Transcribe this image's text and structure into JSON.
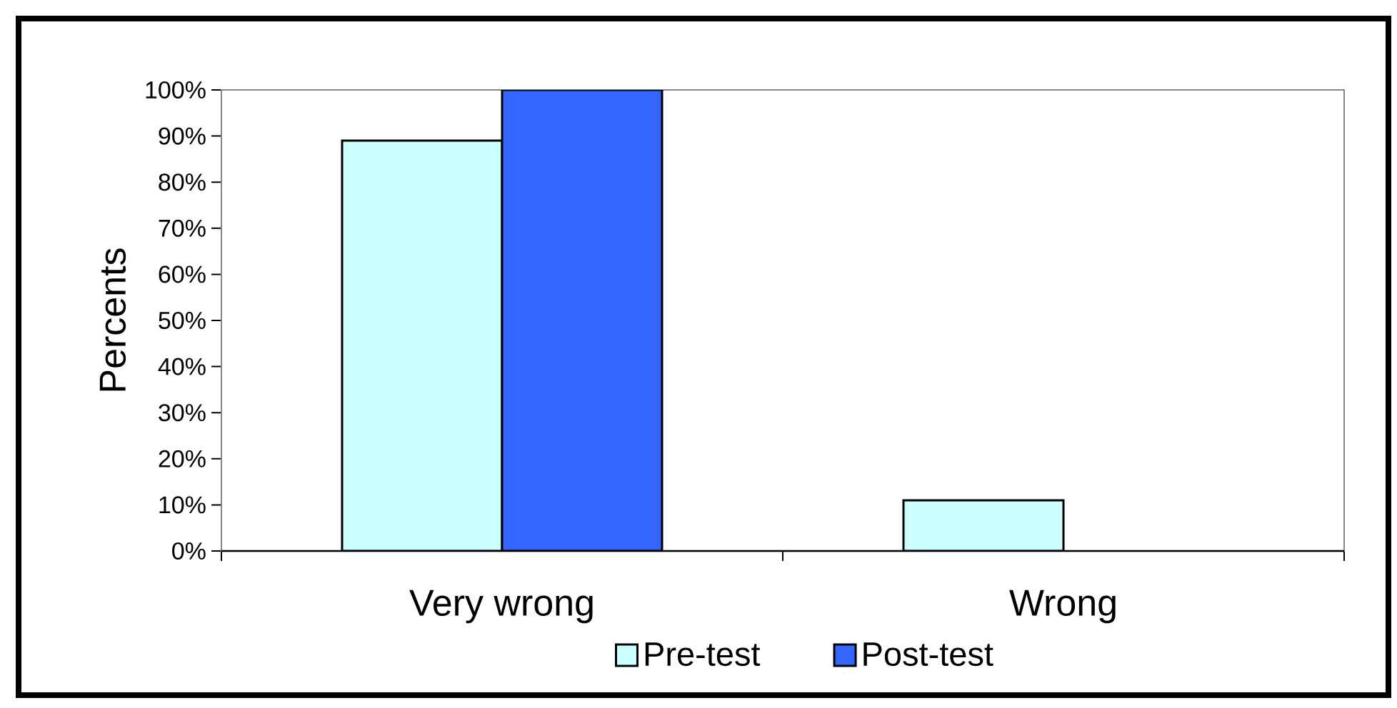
{
  "chart_data": {
    "type": "bar",
    "ylabel": "Percents",
    "categories": [
      "Very wrong",
      "Wrong"
    ],
    "series": [
      {
        "name": "Pre-test",
        "color": "#ccffff",
        "values": [
          89,
          11
        ]
      },
      {
        "name": "Post-test",
        "color": "#3366ff",
        "values": [
          100,
          0
        ]
      }
    ],
    "ylim": [
      0,
      100
    ],
    "yticks": [
      {
        "value": 0,
        "label": "0%"
      },
      {
        "value": 10,
        "label": "10%"
      },
      {
        "value": 20,
        "label": "20%"
      },
      {
        "value": 30,
        "label": "30%"
      },
      {
        "value": 40,
        "label": "40%"
      },
      {
        "value": 50,
        "label": "50%"
      },
      {
        "value": 60,
        "label": "60%"
      },
      {
        "value": 70,
        "label": "70%"
      },
      {
        "value": 80,
        "label": "80%"
      },
      {
        "value": 90,
        "label": "90%"
      },
      {
        "value": 100,
        "label": "100%"
      }
    ],
    "legend": "bottom"
  }
}
